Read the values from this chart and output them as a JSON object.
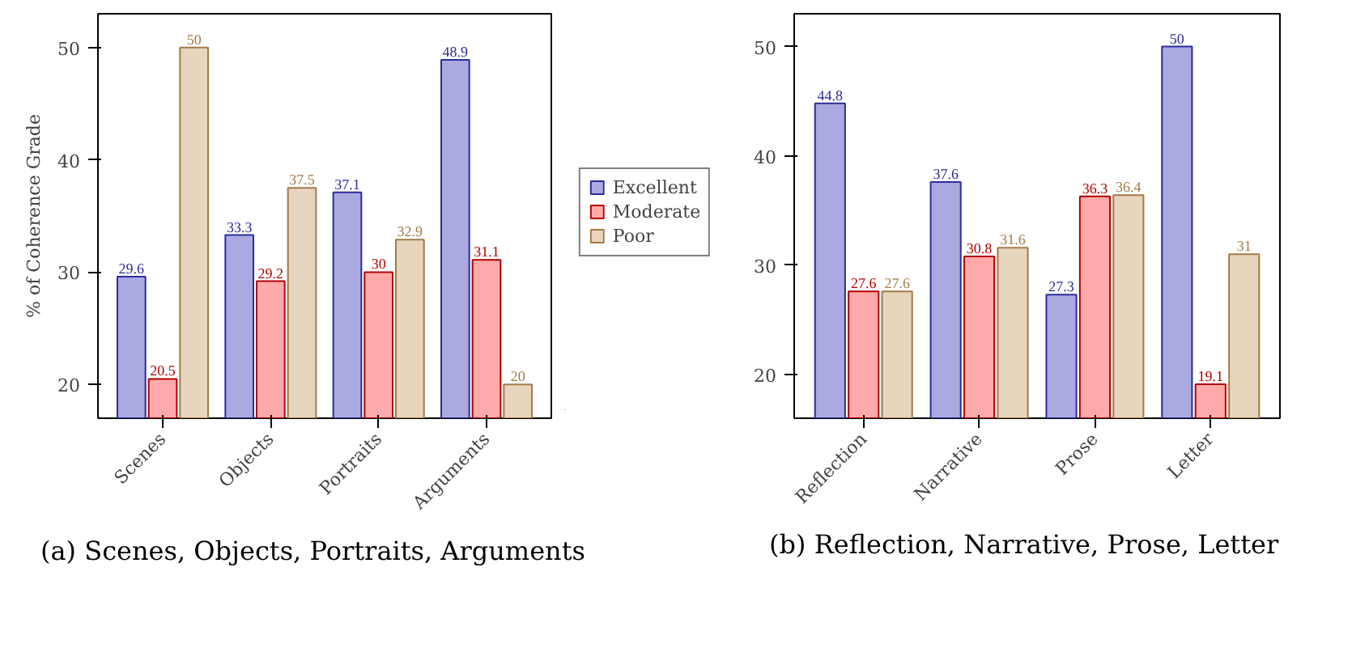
{
  "chart_data": [
    {
      "type": "bar",
      "categories": [
        "Scenes",
        "Objects",
        "Portraits",
        "Arguments"
      ],
      "ylabel": "% of Coherence Grade",
      "ylim": [
        17,
        53
      ],
      "yticks": [
        20,
        30,
        40,
        50
      ],
      "grid": false,
      "data_labels": true,
      "legend": "right",
      "annotations": [
        "(a) Scenes, Objects, Portraits, Arguments"
      ],
      "series": [
        {
          "name": "Excellent",
          "color": "#aaaae0",
          "values": [
            29.6,
            33.3,
            37.1,
            48.9
          ]
        },
        {
          "name": "Moderate",
          "color": "#ffaaaa",
          "values": [
            20.5,
            29.2,
            30,
            31.1
          ]
        },
        {
          "name": "Poor",
          "color": "#e8d5bd",
          "values": [
            50,
            37.5,
            32.9,
            20
          ]
        }
      ]
    },
    {
      "type": "bar",
      "categories": [
        "Reflection",
        "Narrative",
        "Prose",
        "Letter"
      ],
      "ylim": [
        16,
        53
      ],
      "yticks": [
        20,
        30,
        40,
        50
      ],
      "grid": false,
      "data_labels": true,
      "annotations": [
        "(b) Reflection, Narrative, Prose, Letter"
      ],
      "series": [
        {
          "color": "#aaaae0",
          "values": [
            44.8,
            37.6,
            27.3,
            50
          ]
        },
        {
          "color": "#ffaaaa",
          "values": [
            27.6,
            30.8,
            36.3,
            19.1
          ]
        },
        {
          "color": "#e8d5bd",
          "values": [
            27.6,
            31.6,
            36.4,
            31
          ]
        }
      ]
    }
  ]
}
